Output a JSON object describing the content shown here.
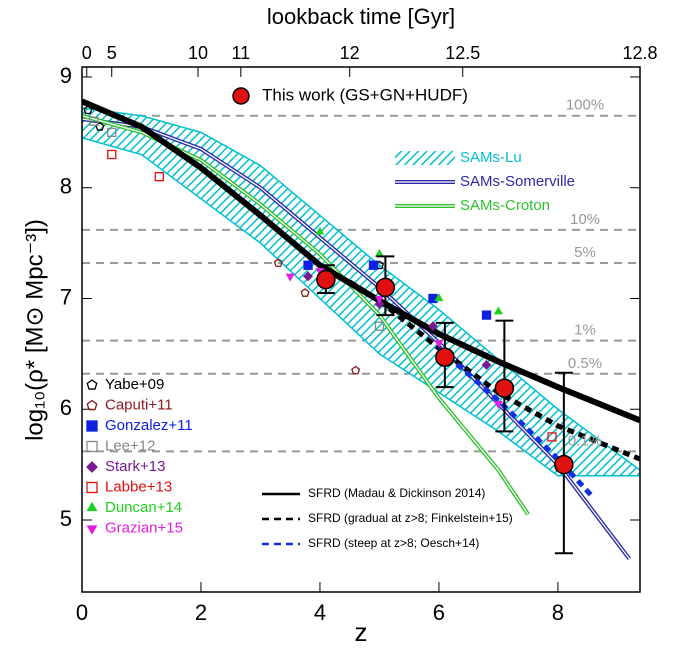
{
  "chart_data": {
    "type": "scatter",
    "x_label": "z",
    "y_label": "log₁₀(ρ* [M⊙ Mpc⁻³])",
    "top_axis_label": "lookback time [Gyr]",
    "xlim": [
      0,
      9.38
    ],
    "ylim": [
      4.35,
      9.09
    ],
    "xticks": [
      0,
      2,
      4,
      6,
      8
    ],
    "yticks": [
      5,
      6,
      7,
      8,
      9
    ],
    "top_ticks": [
      {
        "value": 0.08,
        "label": "0"
      },
      {
        "value": 0.5,
        "label": "5"
      },
      {
        "value": 1.95,
        "label": "10"
      },
      {
        "value": 2.67,
        "label": "11"
      },
      {
        "value": 4.5,
        "label": "12"
      },
      {
        "value": 6.4,
        "label": "12.5"
      },
      {
        "value": 9.38,
        "label": "12.8"
      }
    ],
    "reference_lines": [
      {
        "value": 8.65,
        "label": "100%"
      },
      {
        "value": 7.62,
        "label": "10%"
      },
      {
        "value": 7.32,
        "label": "5%"
      },
      {
        "value": 6.62,
        "label": "1%"
      },
      {
        "value": 6.32,
        "label": "0.5%"
      },
      {
        "value": 5.62,
        "label": "0.1%"
      }
    ],
    "this_work": {
      "name": "This work (GS+GN+HUDF)",
      "color": "#e01010",
      "x": [
        4.1,
        5.1,
        6.1,
        7.1,
        8.1
      ],
      "values": [
        7.17,
        7.1,
        6.47,
        6.19,
        5.5
      ],
      "lower": [
        7.05,
        6.85,
        6.2,
        5.8,
        4.7
      ],
      "upper": [
        7.3,
        7.38,
        6.78,
        6.8,
        6.33
      ]
    },
    "sams": [
      {
        "name": "SAMs-Lu",
        "color": "#00c0d0",
        "style": "band",
        "x": [
          0,
          1,
          2,
          3,
          4,
          5,
          6,
          7,
          8,
          9.38
        ],
        "upper": [
          8.72,
          8.65,
          8.5,
          8.2,
          7.75,
          7.3,
          6.9,
          6.45,
          6.0,
          5.45
        ],
        "lower": [
          8.45,
          8.3,
          7.9,
          7.5,
          7.0,
          6.5,
          6.15,
          5.8,
          5.4,
          5.4
        ]
      },
      {
        "name": "SAMs-Somerville",
        "color": "#2a2aa8",
        "style": "line",
        "x": [
          0,
          1,
          2,
          3,
          4,
          5,
          6,
          7,
          8,
          9.2
        ],
        "values": [
          8.62,
          8.55,
          8.35,
          8.0,
          7.55,
          7.1,
          6.6,
          6.05,
          5.5,
          4.65
        ]
      },
      {
        "name": "SAMs-Croton",
        "color": "#30c030",
        "style": "line",
        "x": [
          0,
          1,
          2,
          3,
          4,
          5,
          6,
          7,
          7.5
        ],
        "values": [
          8.65,
          8.5,
          8.25,
          7.85,
          7.4,
          6.85,
          6.1,
          5.45,
          5.05
        ]
      }
    ],
    "sfrd": [
      {
        "name": "SFRD (Madau & Dickinson 2014)",
        "color": "#000000",
        "dash": "none",
        "x": [
          0,
          1,
          2,
          3,
          4,
          5,
          6,
          7,
          8,
          9.38
        ],
        "values": [
          8.78,
          8.55,
          8.18,
          7.75,
          7.3,
          6.98,
          6.68,
          6.43,
          6.2,
          5.9
        ]
      },
      {
        "name": "SFRD (gradual at z>8; Finkelstein+15)",
        "color": "#000000",
        "dash": "7,5",
        "x": [
          4.5,
          5,
          6,
          7,
          8,
          9.38
        ],
        "values": [
          7.15,
          6.98,
          6.55,
          6.15,
          5.85,
          5.55
        ]
      },
      {
        "name": "SFRD (steep at z>8; Oesch+14)",
        "color": "#1030e0",
        "dash": "7,5",
        "x": [
          6,
          7,
          8,
          8.6
        ],
        "values": [
          6.55,
          6.08,
          5.55,
          5.2
        ]
      }
    ],
    "datasets": [
      {
        "name": "Yabe+09",
        "color": "#000000",
        "marker": "pentagon",
        "filled": false,
        "x": [
          0.1,
          0.3,
          5.0
        ],
        "values": [
          8.7,
          8.55,
          7.3
        ]
      },
      {
        "name": "Caputi+11",
        "color": "#8b1a1a",
        "marker": "pentagon",
        "filled": false,
        "x": [
          3.3,
          3.75,
          4.6
        ],
        "values": [
          7.32,
          7.05,
          6.35
        ]
      },
      {
        "name": "Gonzalez+11",
        "color": "#1020e0",
        "marker": "square",
        "filled": true,
        "x": [
          3.8,
          4.9,
          5.9,
          6.8
        ],
        "values": [
          7.3,
          7.3,
          7.0,
          6.85
        ]
      },
      {
        "name": "Lee+12",
        "color": "#888888",
        "marker": "square",
        "filled": false,
        "x": [
          0.2,
          0.5,
          5.0
        ],
        "values": [
          8.6,
          8.5,
          6.75
        ]
      },
      {
        "name": "Stark+13",
        "color": "#7a1a90",
        "marker": "diamond",
        "filled": true,
        "x": [
          3.8,
          5.0,
          5.9,
          6.8
        ],
        "values": [
          7.2,
          6.95,
          6.75,
          6.4
        ]
      },
      {
        "name": "Labbe+13",
        "color": "#e01010",
        "marker": "square",
        "filled": false,
        "x": [
          0.5,
          1.3,
          7.9
        ],
        "values": [
          8.3,
          8.1,
          5.75
        ]
      },
      {
        "name": "Duncan+14",
        "color": "#20d020",
        "marker": "triangle-up",
        "filled": true,
        "x": [
          4.0,
          5.0,
          6.0,
          7.0
        ],
        "values": [
          7.6,
          7.4,
          7.0,
          6.88
        ]
      },
      {
        "name": "Grazian+15",
        "color": "#e020e0",
        "marker": "triangle-down",
        "filled": true,
        "x": [
          3.5,
          4.0,
          5.0,
          6.0,
          7.0
        ],
        "values": [
          7.2,
          7.25,
          7.0,
          6.6,
          6.05
        ]
      }
    ]
  }
}
